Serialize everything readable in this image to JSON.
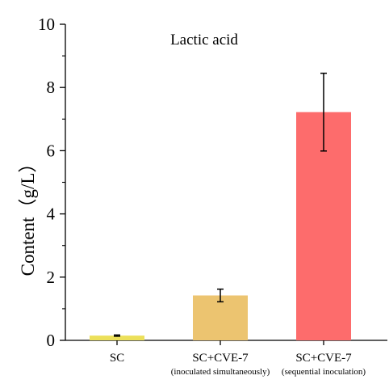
{
  "chart_data": {
    "type": "bar",
    "title": "Lactic acid",
    "xlabel": "",
    "ylabel": "Content（g/L）",
    "ylim": [
      0,
      10
    ],
    "yticks": [
      0,
      2,
      4,
      6,
      8,
      10
    ],
    "grid": false,
    "categories": [
      "SC",
      "SC+CVE-7",
      "SC+CVE-7"
    ],
    "category_sublabels": [
      "",
      "(inoculated simultaneously)",
      "(sequential inoculation)"
    ],
    "values": [
      0.15,
      1.42,
      7.22
    ],
    "error": [
      0.02,
      0.2,
      1.23
    ],
    "colors": [
      "#ece05a",
      "#ecc470",
      "#fd6c6c"
    ]
  }
}
